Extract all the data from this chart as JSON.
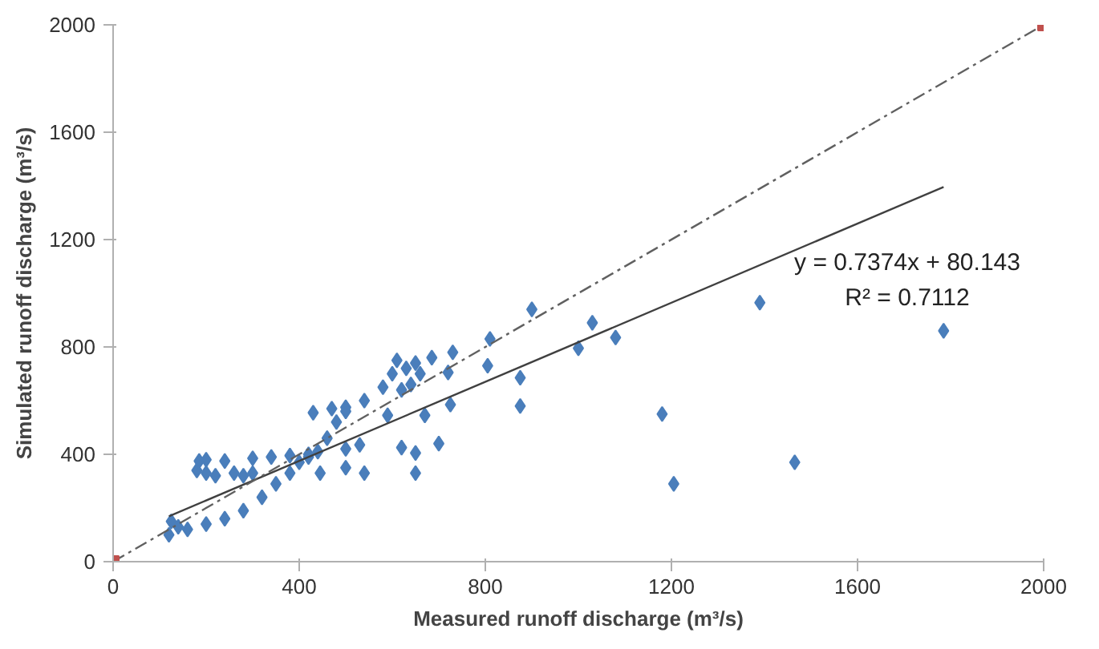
{
  "chart_data": {
    "type": "scatter",
    "xlabel": "Measured runoff discharge (m³/s)",
    "ylabel": "Simulated runoff discharge (m³/s)",
    "xlim": [
      0,
      2000
    ],
    "ylim": [
      0,
      2000
    ],
    "xticks": [
      0,
      400,
      800,
      1200,
      1600,
      2000
    ],
    "yticks": [
      0,
      400,
      800,
      1200,
      1600,
      2000
    ],
    "grid": false,
    "series": [
      {
        "marker": "diamond",
        "color": "#4a7ebb",
        "x": [
          900,
          1390,
          1785,
          1030,
          1080,
          1000,
          810,
          805,
          875,
          875,
          1180,
          1205,
          1465,
          730,
          685,
          720,
          725,
          670,
          700,
          620,
          650,
          650,
          445,
          500,
          500,
          540,
          530,
          590,
          180,
          185,
          200,
          240,
          260,
          300,
          300,
          340,
          380,
          420,
          430,
          470,
          500,
          540,
          580,
          600,
          610,
          630,
          650,
          660,
          640,
          620,
          220,
          280,
          200,
          120,
          125,
          140,
          160,
          200,
          240,
          280,
          320,
          350,
          380,
          400,
          420,
          440,
          460,
          480,
          500
        ],
        "values": [
          940,
          965,
          860,
          890,
          835,
          795,
          830,
          730,
          685,
          580,
          550,
          290,
          370,
          780,
          760,
          705,
          585,
          545,
          440,
          425,
          405,
          330,
          330,
          420,
          350,
          330,
          435,
          545,
          340,
          375,
          380,
          375,
          330,
          330,
          385,
          390,
          395,
          400,
          555,
          570,
          575,
          600,
          650,
          700,
          750,
          720,
          740,
          700,
          660,
          640,
          320,
          320,
          330,
          100,
          150,
          130,
          120,
          140,
          160,
          190,
          240,
          290,
          330,
          370,
          390,
          410,
          460,
          520,
          560
        ]
      },
      {
        "type": "line",
        "line_style": "solid",
        "color": "#404040",
        "x": [
          120,
          1785
        ],
        "values": [
          169,
          1396
        ]
      },
      {
        "type": "line",
        "line_style": "dashed",
        "color": "#606060",
        "x": [
          0,
          2000
        ],
        "values": [
          0,
          2000
        ]
      },
      {
        "type": "scatter",
        "marker": "square",
        "color": "#c0504d",
        "x": [
          0,
          2000
        ],
        "values": [
          0,
          2000
        ]
      }
    ],
    "annotations": [
      "y = 0.7374x + 80.143",
      "R² = 0.7112"
    ]
  }
}
